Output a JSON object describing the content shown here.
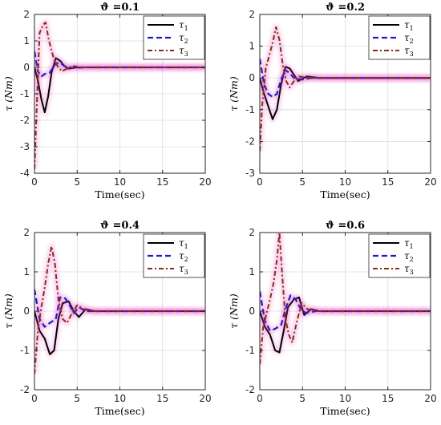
{
  "figure": {
    "background": "#ffffff",
    "series_colors": {
      "tau1": "#000000",
      "tau2": "#1a1acc",
      "tau3": "#8b2a14"
    },
    "glow_color": "#e33bb4"
  },
  "chart_data": [
    {
      "type": "line",
      "title": "ϑ =0.1",
      "xlabel": "Time(sec)",
      "ylabel": "τ (Nm)",
      "xlim": [
        0,
        20
      ],
      "ylim": [
        -4,
        2
      ],
      "xticks": [
        0,
        5,
        10,
        15,
        20
      ],
      "yticks": [
        -4,
        -3,
        -2,
        -1,
        0,
        1,
        2
      ],
      "grid": true,
      "legend": "top-right",
      "series": [
        {
          "name": "τ1",
          "points": [
            [
              0,
              0
            ],
            [
              0.4,
              -0.5
            ],
            [
              0.8,
              -1.2
            ],
            [
              1.2,
              -1.7
            ],
            [
              1.6,
              -1.1
            ],
            [
              2.0,
              -0.2
            ],
            [
              2.5,
              0.35
            ],
            [
              3.0,
              0.25
            ],
            [
              3.5,
              0.05
            ],
            [
              4.0,
              -0.05
            ],
            [
              5,
              0.0
            ],
            [
              10,
              0.0
            ],
            [
              20,
              0.0
            ]
          ]
        },
        {
          "name": "τ2",
          "points": [
            [
              0,
              0.6
            ],
            [
              0.4,
              -0.15
            ],
            [
              0.8,
              -0.35
            ],
            [
              1.2,
              -0.25
            ],
            [
              1.8,
              -0.2
            ],
            [
              2.5,
              0.15
            ],
            [
              3.0,
              0.18
            ],
            [
              3.5,
              0.05
            ],
            [
              4.5,
              -0.02
            ],
            [
              6,
              0.0
            ],
            [
              20,
              0.0
            ]
          ]
        },
        {
          "name": "τ3",
          "points": [
            [
              0,
              -3.85
            ],
            [
              0.3,
              -1.2
            ],
            [
              0.6,
              1.3
            ],
            [
              1.0,
              1.6
            ],
            [
              1.3,
              1.7
            ],
            [
              1.7,
              1.0
            ],
            [
              2.2,
              0.4
            ],
            [
              2.7,
              0.05
            ],
            [
              3.2,
              -0.15
            ],
            [
              3.8,
              -0.05
            ],
            [
              4.5,
              0.05
            ],
            [
              5.5,
              0.0
            ],
            [
              20,
              0.0
            ]
          ]
        }
      ]
    },
    {
      "type": "line",
      "title": "ϑ =0.2",
      "xlabel": "Time(sec)",
      "ylabel": "τ (Nm)",
      "xlim": [
        0,
        20
      ],
      "ylim": [
        -3,
        2
      ],
      "xticks": [
        0,
        5,
        10,
        15,
        20
      ],
      "yticks": [
        -3,
        -2,
        -1,
        0,
        1,
        2
      ],
      "grid": true,
      "legend": "top-right",
      "series": [
        {
          "name": "τ1",
          "points": [
            [
              0,
              0
            ],
            [
              0.5,
              -0.5
            ],
            [
              1.0,
              -0.9
            ],
            [
              1.5,
              -1.3
            ],
            [
              2.0,
              -1.0
            ],
            [
              2.5,
              -0.2
            ],
            [
              3.0,
              0.35
            ],
            [
              3.5,
              0.3
            ],
            [
              4.0,
              0.1
            ],
            [
              4.5,
              -0.1
            ],
            [
              5.5,
              0.05
            ],
            [
              7,
              0.0
            ],
            [
              20,
              0.0
            ]
          ]
        },
        {
          "name": "τ2",
          "points": [
            [
              0,
              0.6
            ],
            [
              0.5,
              -0.2
            ],
            [
              1.0,
              -0.5
            ],
            [
              1.5,
              -0.6
            ],
            [
              2.0,
              -0.5
            ],
            [
              2.5,
              -0.05
            ],
            [
              3.0,
              0.25
            ],
            [
              3.5,
              0.15
            ],
            [
              4.0,
              0.0
            ],
            [
              5,
              -0.05
            ],
            [
              6,
              0.0
            ],
            [
              20,
              0.0
            ]
          ]
        },
        {
          "name": "τ3",
          "points": [
            [
              0,
              -2.3
            ],
            [
              0.3,
              -0.8
            ],
            [
              0.7,
              0.3
            ],
            [
              1.0,
              0.6
            ],
            [
              1.5,
              1.1
            ],
            [
              1.9,
              1.6
            ],
            [
              2.3,
              1.2
            ],
            [
              2.7,
              0.4
            ],
            [
              3.1,
              -0.1
            ],
            [
              3.5,
              -0.3
            ],
            [
              4.0,
              -0.1
            ],
            [
              4.6,
              0.05
            ],
            [
              5.5,
              0.0
            ],
            [
              20,
              0.0
            ]
          ]
        }
      ]
    },
    {
      "type": "line",
      "title": "ϑ =0.4",
      "xlabel": "Time(sec)",
      "ylabel": "τ (Nm)",
      "xlim": [
        0,
        20
      ],
      "ylim": [
        -2,
        2
      ],
      "xticks": [
        0,
        5,
        10,
        15,
        20
      ],
      "yticks": [
        -2,
        -1,
        0,
        1,
        2
      ],
      "grid": true,
      "legend": "top-right",
      "series": [
        {
          "name": "τ1",
          "points": [
            [
              0,
              0
            ],
            [
              0.6,
              -0.5
            ],
            [
              1.2,
              -0.7
            ],
            [
              1.8,
              -1.1
            ],
            [
              2.3,
              -1.0
            ],
            [
              2.8,
              -0.2
            ],
            [
              3.3,
              0.2
            ],
            [
              4.0,
              0.25
            ],
            [
              4.6,
              0.0
            ],
            [
              5.2,
              -0.15
            ],
            [
              6,
              0.05
            ],
            [
              7,
              0.0
            ],
            [
              20,
              0.0
            ]
          ]
        },
        {
          "name": "τ2",
          "points": [
            [
              0,
              0.55
            ],
            [
              0.6,
              -0.2
            ],
            [
              1.2,
              -0.4
            ],
            [
              1.8,
              -0.3
            ],
            [
              2.5,
              -0.2
            ],
            [
              3.0,
              0.35
            ],
            [
              3.5,
              0.35
            ],
            [
              4.0,
              0.2
            ],
            [
              4.6,
              -0.05
            ],
            [
              5.2,
              0.1
            ],
            [
              6,
              0.0
            ],
            [
              20,
              0.0
            ]
          ]
        },
        {
          "name": "τ3",
          "points": [
            [
              0,
              -1.6
            ],
            [
              0.4,
              -0.5
            ],
            [
              0.8,
              0.1
            ],
            [
              1.2,
              0.6
            ],
            [
              1.6,
              1.2
            ],
            [
              2.0,
              1.65
            ],
            [
              2.4,
              1.2
            ],
            [
              2.8,
              0.3
            ],
            [
              3.3,
              -0.2
            ],
            [
              3.8,
              -0.3
            ],
            [
              4.4,
              -0.05
            ],
            [
              5.0,
              0.15
            ],
            [
              5.8,
              0.05
            ],
            [
              7,
              0.0
            ],
            [
              20,
              0.0
            ]
          ]
        }
      ]
    },
    {
      "type": "line",
      "title": "ϑ =0.6",
      "xlabel": "Time(sec)",
      "ylabel": "τ (Nm)",
      "xlim": [
        0,
        20
      ],
      "ylim": [
        -2,
        2
      ],
      "xticks": [
        0,
        5,
        10,
        15,
        20
      ],
      "yticks": [
        -2,
        -1,
        0,
        1,
        2
      ],
      "grid": true,
      "legend": "top-right",
      "series": [
        {
          "name": "τ1",
          "points": [
            [
              0,
              0
            ],
            [
              0.6,
              -0.4
            ],
            [
              1.2,
              -0.6
            ],
            [
              1.8,
              -1.0
            ],
            [
              2.3,
              -1.05
            ],
            [
              2.8,
              -0.5
            ],
            [
              3.3,
              0.1
            ],
            [
              4.0,
              0.3
            ],
            [
              4.6,
              0.35
            ],
            [
              5.2,
              -0.1
            ],
            [
              6,
              0.05
            ],
            [
              7,
              0.0
            ],
            [
              20,
              0.0
            ]
          ]
        },
        {
          "name": "τ2",
          "points": [
            [
              0,
              0.5
            ],
            [
              0.6,
              -0.25
            ],
            [
              1.2,
              -0.5
            ],
            [
              1.8,
              -0.45
            ],
            [
              2.5,
              -0.35
            ],
            [
              3.0,
              0.05
            ],
            [
              3.6,
              0.4
            ],
            [
              4.2,
              0.3
            ],
            [
              4.8,
              0.05
            ],
            [
              5.4,
              -0.05
            ],
            [
              6.5,
              0.0
            ],
            [
              20,
              0.0
            ]
          ]
        },
        {
          "name": "τ3",
          "points": [
            [
              0,
              -1.35
            ],
            [
              0.4,
              -0.4
            ],
            [
              0.8,
              -0.05
            ],
            [
              1.2,
              0.3
            ],
            [
              1.6,
              0.7
            ],
            [
              2.0,
              1.3
            ],
            [
              2.3,
              2.0
            ],
            [
              2.6,
              1.0
            ],
            [
              3.0,
              -0.2
            ],
            [
              3.4,
              -0.6
            ],
            [
              3.8,
              -0.8
            ],
            [
              4.3,
              -0.3
            ],
            [
              4.9,
              0.2
            ],
            [
              5.6,
              0.05
            ],
            [
              7,
              0.0
            ],
            [
              20,
              0.0
            ]
          ]
        }
      ]
    }
  ]
}
